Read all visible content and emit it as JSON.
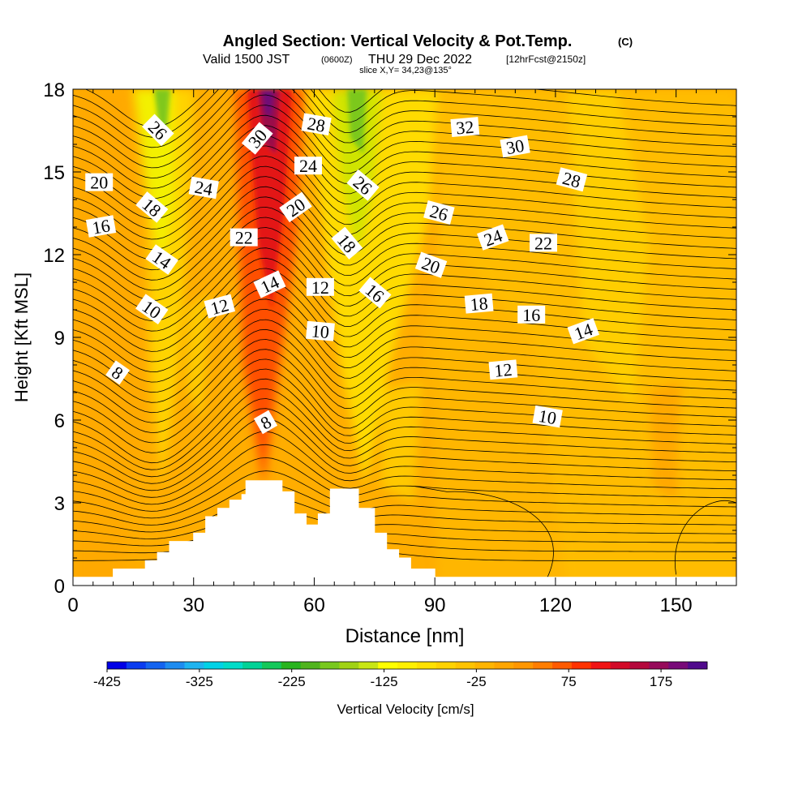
{
  "header": {
    "title": "Angled Section: Vertical Velocity & Pot.Temp.",
    "title_units": "(C)",
    "valid_prefix": "Valid 1500 JST",
    "valid_utc": "(0600Z)",
    "valid_date": "THU 29 Dec 2022",
    "forecast": "[12hrFcst@2150z]",
    "slice": "slice X,Y= 34,23@135°"
  },
  "chart_data": {
    "type": "heatmap",
    "xlabel": "Distance [nm]",
    "ylabel": "Height [Kft MSL]",
    "xlim": [
      0,
      165
    ],
    "ylim": [
      0,
      18
    ],
    "x_ticks": [
      0,
      30,
      60,
      90,
      120,
      150
    ],
    "y_ticks": [
      0,
      3,
      6,
      9,
      12,
      15,
      18
    ],
    "colorbar": {
      "label": "Vertical Velocity [cm/s]",
      "range": [
        -425,
        225
      ],
      "step": 25,
      "tick_values": [
        -425,
        -325,
        -225,
        -125,
        -25,
        75,
        175
      ],
      "colors": [
        "#0000e6",
        "#0a3cf0",
        "#1464f0",
        "#1e8cf0",
        "#1eb4f0",
        "#00d2e6",
        "#00dcc8",
        "#00d296",
        "#14c85a",
        "#28b41e",
        "#50b41e",
        "#78c81e",
        "#a0d214",
        "#c8e614",
        "#ffff00",
        "#fff000",
        "#ffe100",
        "#ffd200",
        "#ffc300",
        "#ffb400",
        "#ffa500",
        "#ff9600",
        "#ff7d00",
        "#ff5a00",
        "#ff3200",
        "#f01414",
        "#d20a28",
        "#b4083c",
        "#960a5a",
        "#780a78",
        "#500a8c"
      ]
    },
    "terrain": [
      [
        0,
        0.3
      ],
      [
        10,
        0.3
      ],
      [
        10,
        0.6
      ],
      [
        18,
        0.6
      ],
      [
        18,
        0.9
      ],
      [
        21,
        0.9
      ],
      [
        21,
        1.2
      ],
      [
        24,
        1.2
      ],
      [
        24,
        1.6
      ],
      [
        30,
        1.6
      ],
      [
        30,
        1.9
      ],
      [
        33,
        1.9
      ],
      [
        33,
        2.5
      ],
      [
        36,
        2.5
      ],
      [
        36,
        2.8
      ],
      [
        39,
        2.8
      ],
      [
        39,
        3.1
      ],
      [
        42,
        3.1
      ],
      [
        42,
        3.3
      ],
      [
        43,
        3.3
      ],
      [
        43,
        3.8
      ],
      [
        52,
        3.8
      ],
      [
        52,
        3.4
      ],
      [
        55,
        3.4
      ],
      [
        55,
        2.6
      ],
      [
        58,
        2.6
      ],
      [
        58,
        2.2
      ],
      [
        61,
        2.2
      ],
      [
        61,
        2.6
      ],
      [
        64,
        2.6
      ],
      [
        64,
        3.5
      ],
      [
        71,
        3.5
      ],
      [
        71,
        2.8
      ],
      [
        75,
        2.8
      ],
      [
        75,
        1.9
      ],
      [
        78,
        1.9
      ],
      [
        78,
        1.3
      ],
      [
        81,
        1.3
      ],
      [
        81,
        1.0
      ],
      [
        84,
        1.0
      ],
      [
        84,
        0.6
      ],
      [
        90,
        0.6
      ],
      [
        90,
        0.3
      ],
      [
        165,
        0.3
      ]
    ],
    "contour_labels": [
      {
        "value": "26",
        "x": 21,
        "y": 16.5,
        "angle": 45
      },
      {
        "value": "20",
        "x": 6.5,
        "y": 14.6,
        "angle": 0
      },
      {
        "value": "18",
        "x": 19.5,
        "y": 13.7,
        "angle": 40
      },
      {
        "value": "16",
        "x": 7,
        "y": 13.0,
        "angle": -10
      },
      {
        "value": "14",
        "x": 22,
        "y": 11.8,
        "angle": 35
      },
      {
        "value": "10",
        "x": 19.5,
        "y": 10.0,
        "angle": 35
      },
      {
        "value": "8",
        "x": 11,
        "y": 7.7,
        "angle": 35
      },
      {
        "value": "24",
        "x": 32.5,
        "y": 14.4,
        "angle": 10
      },
      {
        "value": "12",
        "x": 36.5,
        "y": 10.1,
        "angle": -15
      },
      {
        "value": "22",
        "x": 42.5,
        "y": 12.6,
        "angle": 0
      },
      {
        "value": "30",
        "x": 46,
        "y": 16.2,
        "angle": -50
      },
      {
        "value": "20",
        "x": 55.5,
        "y": 13.7,
        "angle": -35
      },
      {
        "value": "14",
        "x": 49,
        "y": 10.9,
        "angle": -25
      },
      {
        "value": "8",
        "x": 48,
        "y": 5.9,
        "angle": -30
      },
      {
        "value": "28",
        "x": 60.5,
        "y": 16.7,
        "angle": 10
      },
      {
        "value": "24",
        "x": 58.5,
        "y": 15.2,
        "angle": 0
      },
      {
        "value": "12",
        "x": 61.5,
        "y": 10.8,
        "angle": 0
      },
      {
        "value": "10",
        "x": 61.5,
        "y": 9.2,
        "angle": 5
      },
      {
        "value": "26",
        "x": 72,
        "y": 14.5,
        "angle": 40
      },
      {
        "value": "18",
        "x": 68,
        "y": 12.4,
        "angle": 50
      },
      {
        "value": "16",
        "x": 75,
        "y": 10.6,
        "angle": 40
      },
      {
        "value": "32",
        "x": 97.5,
        "y": 16.6,
        "angle": -5
      },
      {
        "value": "30",
        "x": 110,
        "y": 15.9,
        "angle": -10
      },
      {
        "value": "28",
        "x": 124,
        "y": 14.7,
        "angle": 15
      },
      {
        "value": "26",
        "x": 91,
        "y": 13.5,
        "angle": 15
      },
      {
        "value": "24",
        "x": 104.5,
        "y": 12.6,
        "angle": -20
      },
      {
        "value": "22",
        "x": 117,
        "y": 12.4,
        "angle": 0
      },
      {
        "value": "20",
        "x": 89,
        "y": 11.6,
        "angle": 20
      },
      {
        "value": "18",
        "x": 101,
        "y": 10.2,
        "angle": -5
      },
      {
        "value": "16",
        "x": 114,
        "y": 9.8,
        "angle": 0
      },
      {
        "value": "14",
        "x": 127,
        "y": 9.2,
        "angle": -20
      },
      {
        "value": "12",
        "x": 107,
        "y": 7.8,
        "angle": -5
      },
      {
        "value": "10",
        "x": 118,
        "y": 6.1,
        "angle": 10
      }
    ]
  }
}
